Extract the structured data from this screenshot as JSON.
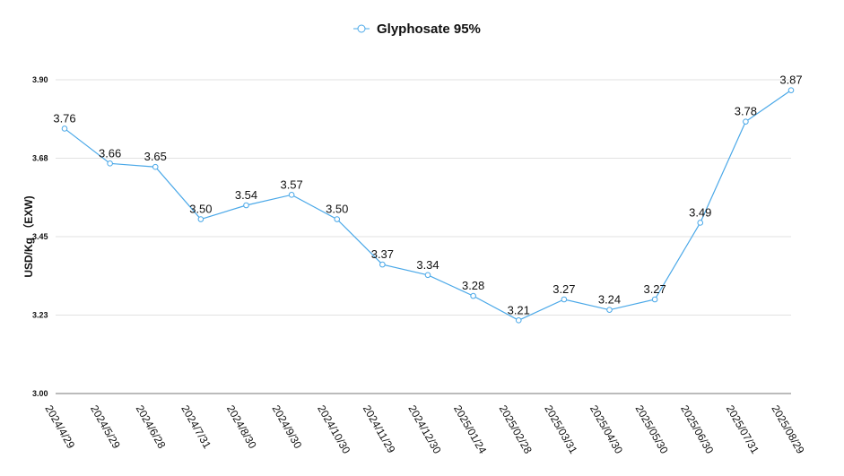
{
  "chart_data": {
    "type": "line",
    "title": "",
    "xlabel": "",
    "ylabel": "USD/Kg （EXW)",
    "ylim": [
      3.0,
      3.9
    ],
    "yticks": [
      "3.00",
      "3.23",
      "3.45",
      "3.68",
      "3.90"
    ],
    "ytick_values": [
      3.0,
      3.225,
      3.45,
      3.675,
      3.9
    ],
    "grid": true,
    "legend_position": "top-center",
    "categories": [
      "2024/4/29",
      "2024/5/29",
      "2024/6/28",
      "2024/7/31",
      "2024/8/30",
      "2024/9/30",
      "2024/10/30",
      "2024/11/29",
      "2024/12/30",
      "2025/01/24",
      "2025/02/28",
      "2025/03/31",
      "2025/04/30",
      "2025/05/30",
      "2025/06/30",
      "2025/07/31",
      "2025/08/29"
    ],
    "series": [
      {
        "name": "Glyphosate 95%",
        "color": "#4aa8e8",
        "values": [
          3.76,
          3.66,
          3.65,
          3.5,
          3.54,
          3.57,
          3.5,
          3.37,
          3.34,
          3.28,
          3.21,
          3.27,
          3.24,
          3.27,
          3.49,
          3.78,
          3.87
        ],
        "labels": [
          "3.76",
          "3.66",
          "3.65",
          "3.50",
          "3.54",
          "3.57",
          "3.50",
          "3.37",
          "3.34",
          "3.28",
          "3.21",
          "3.27",
          "3.24",
          "3.27",
          "3.49",
          "3.78",
          "3.87"
        ]
      }
    ]
  }
}
